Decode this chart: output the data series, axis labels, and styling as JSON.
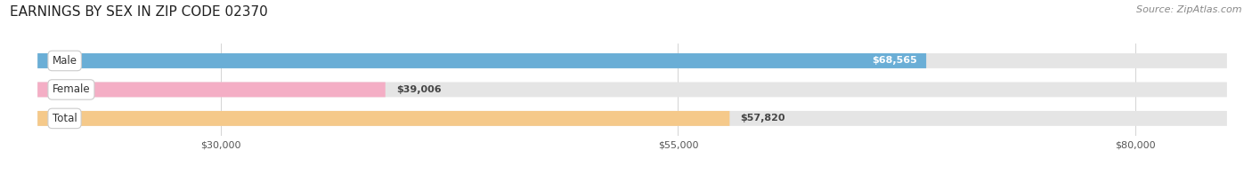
{
  "title": "EARNINGS BY SEX IN ZIP CODE 02370",
  "source": "Source: ZipAtlas.com",
  "categories": [
    "Male",
    "Female",
    "Total"
  ],
  "values": [
    68565,
    39006,
    57820
  ],
  "bar_colors": [
    "#6aaed6",
    "#f4aec5",
    "#f5c98a"
  ],
  "bar_bg_color": "#e5e5e5",
  "value_labels": [
    "$68,565",
    "$39,006",
    "$57,820"
  ],
  "value_label_colors": [
    "white",
    "#444444",
    "#444444"
  ],
  "xlim": [
    20000,
    85000
  ],
  "xticks": [
    30000,
    55000,
    80000
  ],
  "xtick_labels": [
    "$30,000",
    "$55,000",
    "$80,000"
  ],
  "figsize": [
    14.06,
    1.96
  ],
  "dpi": 100,
  "title_fontsize": 11,
  "source_fontsize": 8,
  "label_fontsize": 8.5,
  "value_fontsize": 8,
  "tick_fontsize": 8
}
